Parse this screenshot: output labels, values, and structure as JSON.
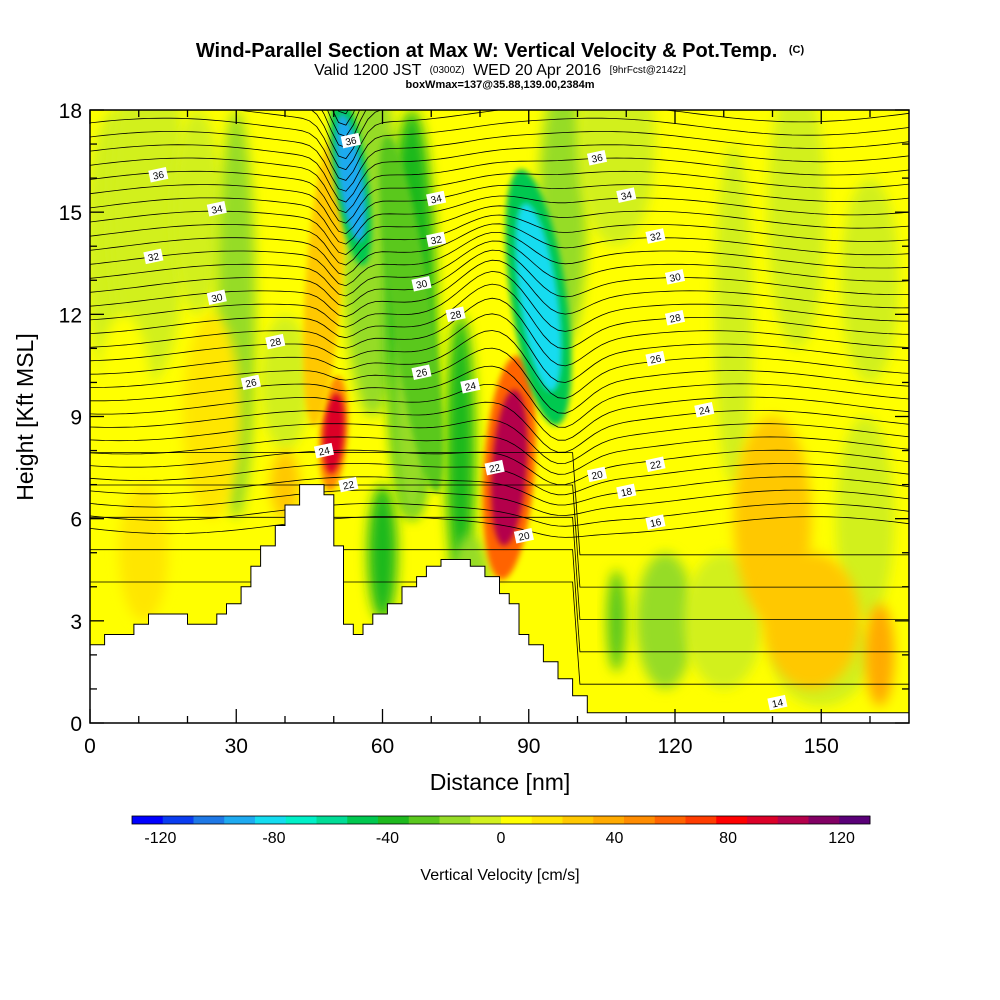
{
  "chart_data": {
    "type": "heatmap",
    "title": {
      "main": "Wind-Parallel Section at Max W: Vertical Velocity & Pot.Temp.",
      "main_suffix": "(C)",
      "line2_prefix": "Valid 1200 JST",
      "line2_small1": "(0300Z)",
      "line2_mid": "WED 20 Apr 2016",
      "line2_small2": "[9hrFcst@2142z]",
      "line3": "boxWmax=137@35.88,139.00,2384m"
    },
    "xlabel": "Distance [nm]",
    "ylabel": "Height [Kft MSL]",
    "xlim": [
      0,
      168
    ],
    "ylim": [
      0,
      18
    ],
    "x_ticks": [
      0,
      30,
      60,
      90,
      120,
      150
    ],
    "y_ticks": [
      0,
      3,
      6,
      9,
      12,
      15,
      18
    ],
    "colorbar": {
      "label": "Vertical Velocity [cm/s]",
      "range": [
        -130,
        130
      ],
      "tick_values": [
        -120,
        -80,
        -40,
        0,
        40,
        80,
        120
      ],
      "tick_labels": [
        "-120",
        "-80",
        "-40",
        "0",
        "40",
        "80",
        "120"
      ],
      "colors": [
        "#0000ff",
        "#0a3cf0",
        "#1e78e6",
        "#1eaaf0",
        "#14dcf0",
        "#00f0c8",
        "#00dc96",
        "#00c850",
        "#1eb91e",
        "#5ac81e",
        "#96dc28",
        "#d2f01e",
        "#ffff00",
        "#ffe600",
        "#ffc800",
        "#ffaa00",
        "#ff8c00",
        "#ff6400",
        "#ff3c00",
        "#ff0000",
        "#dc0028",
        "#b4004b",
        "#820064",
        "#5a0078"
      ]
    },
    "vertical_velocity_features": [
      {
        "kind": "updraft",
        "x": 50,
        "y": 8.5,
        "peak": 90
      },
      {
        "kind": "updraft",
        "x": 86,
        "y": 7.5,
        "peak": 100
      },
      {
        "kind": "updraft",
        "x": 48,
        "y": 13,
        "peak": 45
      },
      {
        "kind": "downdraft",
        "x": 53.5,
        "y": 16,
        "peak": -90
      },
      {
        "kind": "downdraft",
        "x": 92,
        "y": 12.5,
        "peak": -80
      },
      {
        "kind": "downdraft",
        "x": 66,
        "y": 12,
        "peak": -40
      }
    ],
    "potential_temperature_isentropes": [
      14,
      16,
      18,
      20,
      22,
      24,
      26,
      28,
      30,
      32,
      34,
      36
    ],
    "isentrope_labels": [
      {
        "text": "36",
        "x": 14,
        "y": 16.1
      },
      {
        "text": "34",
        "x": 26,
        "y": 15.1
      },
      {
        "text": "32",
        "x": 13,
        "y": 13.7
      },
      {
        "text": "30",
        "x": 26,
        "y": 12.5
      },
      {
        "text": "28",
        "x": 38,
        "y": 11.2
      },
      {
        "text": "26",
        "x": 33,
        "y": 10.0
      },
      {
        "text": "24",
        "x": 48,
        "y": 8.0
      },
      {
        "text": "22",
        "x": 53,
        "y": 7.0
      },
      {
        "text": "36",
        "x": 53.5,
        "y": 17.1
      },
      {
        "text": "34",
        "x": 71,
        "y": 15.4
      },
      {
        "text": "32",
        "x": 71,
        "y": 14.2
      },
      {
        "text": "30",
        "x": 68,
        "y": 12.9
      },
      {
        "text": "28",
        "x": 75,
        "y": 12.0
      },
      {
        "text": "26",
        "x": 68,
        "y": 10.3
      },
      {
        "text": "24",
        "x": 78,
        "y": 9.9
      },
      {
        "text": "22",
        "x": 83,
        "y": 7.5
      },
      {
        "text": "20",
        "x": 89,
        "y": 5.5
      },
      {
        "text": "36",
        "x": 104,
        "y": 16.6
      },
      {
        "text": "34",
        "x": 110,
        "y": 15.5
      },
      {
        "text": "32",
        "x": 116,
        "y": 14.3
      },
      {
        "text": "30",
        "x": 120,
        "y": 13.1
      },
      {
        "text": "28",
        "x": 120,
        "y": 11.9
      },
      {
        "text": "26",
        "x": 116,
        "y": 10.7
      },
      {
        "text": "24",
        "x": 126,
        "y": 9.2
      },
      {
        "text": "22",
        "x": 116,
        "y": 7.6
      },
      {
        "text": "20",
        "x": 104,
        "y": 7.3
      },
      {
        "text": "18",
        "x": 110,
        "y": 6.8
      },
      {
        "text": "16",
        "x": 116,
        "y": 5.9
      },
      {
        "text": "14",
        "x": 141,
        "y": 0.6
      }
    ],
    "terrain_profile": [
      [
        0,
        2.3
      ],
      [
        3,
        2.3
      ],
      [
        3,
        2.6
      ],
      [
        9,
        2.6
      ],
      [
        9,
        2.9
      ],
      [
        12,
        2.9
      ],
      [
        12,
        3.2
      ],
      [
        20,
        3.2
      ],
      [
        20,
        2.9
      ],
      [
        26,
        2.9
      ],
      [
        26,
        3.2
      ],
      [
        28,
        3.2
      ],
      [
        28,
        3.5
      ],
      [
        31,
        3.5
      ],
      [
        31,
        4.0
      ],
      [
        33,
        4.0
      ],
      [
        33,
        4.6
      ],
      [
        35,
        4.6
      ],
      [
        35,
        5.2
      ],
      [
        38,
        5.2
      ],
      [
        38,
        5.8
      ],
      [
        40,
        5.8
      ],
      [
        40,
        6.4
      ],
      [
        43,
        6.4
      ],
      [
        43,
        7.0
      ],
      [
        48,
        7.0
      ],
      [
        48,
        6.7
      ],
      [
        50,
        6.7
      ],
      [
        50,
        5.2
      ],
      [
        52,
        5.2
      ],
      [
        52,
        2.9
      ],
      [
        54,
        2.9
      ],
      [
        54,
        2.6
      ],
      [
        56,
        2.6
      ],
      [
        56,
        2.9
      ],
      [
        58,
        2.9
      ],
      [
        58,
        3.2
      ],
      [
        61,
        3.2
      ],
      [
        61,
        3.5
      ],
      [
        64,
        3.5
      ],
      [
        64,
        4.0
      ],
      [
        67,
        4.0
      ],
      [
        67,
        4.3
      ],
      [
        69,
        4.3
      ],
      [
        69,
        4.6
      ],
      [
        72,
        4.6
      ],
      [
        72,
        4.8
      ],
      [
        78,
        4.8
      ],
      [
        78,
        4.6
      ],
      [
        81,
        4.6
      ],
      [
        81,
        4.3
      ],
      [
        84,
        4.3
      ],
      [
        84,
        3.8
      ],
      [
        86,
        3.8
      ],
      [
        86,
        3.5
      ],
      [
        88,
        3.5
      ],
      [
        88,
        2.6
      ],
      [
        90,
        2.6
      ],
      [
        90,
        2.3
      ],
      [
        93,
        2.3
      ],
      [
        93,
        1.8
      ],
      [
        96,
        1.8
      ],
      [
        96,
        1.3
      ],
      [
        99,
        1.3
      ],
      [
        99,
        0.8
      ],
      [
        102,
        0.8
      ],
      [
        102,
        0.3
      ],
      [
        168,
        0.3
      ]
    ]
  }
}
